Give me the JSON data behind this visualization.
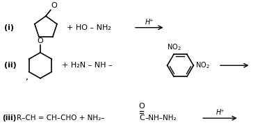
{
  "background_color": "#ffffff",
  "line_color": "#000000",
  "reactions": {
    "i": {
      "label": "(i)",
      "reagent_text": "+ HO – NH₂",
      "arrow_label": "H⁺"
    },
    "ii": {
      "label": "(ii)",
      "reagent_text": "+ H₂N – NH –",
      "no2_top": "NO₂",
      "no2_right": "NO₂",
      "arrow": "→"
    },
    "iii": {
      "label": "(iii)",
      "text1": "R–CH = CH–CHO + NH₂–",
      "text_c": "C",
      "text_o": "O",
      "text2": "–NH–NH₂",
      "arrow_label": "H⁺"
    }
  }
}
